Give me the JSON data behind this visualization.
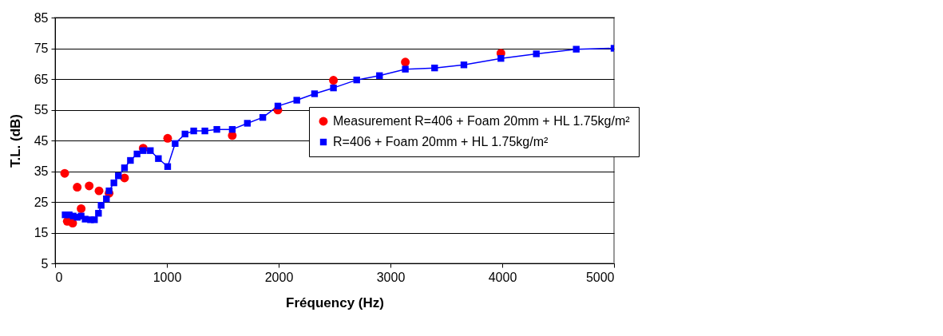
{
  "chart_data": {
    "type": "line",
    "xlabel": "Fréquency (Hz)",
    "ylabel": "T.L. (dB)",
    "xlim": [
      0,
      5000
    ],
    "xticks": [
      0,
      1000,
      2000,
      3000,
      4000,
      5000
    ],
    "ylim": [
      5,
      85
    ],
    "yticks": [
      5,
      15,
      25,
      35,
      45,
      55,
      65,
      75,
      85
    ],
    "grid": "y",
    "legend": "right",
    "series": [
      {
        "name": "Measurement R=406 + Foam 20mm + HL 1.75kg/m²",
        "type": "scatter",
        "marker": "circle",
        "color": "#ff0000",
        "x": [
          86,
          109,
          157,
          198,
          233,
          305,
          393,
          483,
          621,
          788,
          1007,
          1585,
          1993,
          2490,
          3133,
          3988
        ],
        "values": [
          34.3,
          18.7,
          18.1,
          29.8,
          22.8,
          30.2,
          28.6,
          27.8,
          32.8,
          42.5,
          45.7,
          46.6,
          54.9,
          64.6,
          70.5,
          73.4
        ]
      },
      {
        "name": "R=406 + Foam 20mm + HL 1.75kg/m²",
        "type": "line",
        "marker": "square",
        "color": "#0000ff",
        "x": [
          90,
          126,
          162,
          198,
          233,
          269,
          317,
          352,
          388,
          412,
          459,
          483,
          526,
          566,
          621,
          674,
          733,
          788,
          852,
          924,
          1007,
          1074,
          1162,
          1240,
          1340,
          1447,
          1585,
          1720,
          1858,
          1993,
          2162,
          2321,
          2490,
          2698,
          2902,
          3133,
          3395,
          3657,
          3988,
          4305,
          4662,
          5000
        ],
        "values": [
          20.8,
          20.8,
          20.4,
          20.0,
          20.4,
          19.4,
          19.2,
          19.2,
          21.3,
          23.9,
          26.0,
          28.6,
          31.2,
          33.5,
          36.1,
          38.5,
          40.6,
          41.7,
          41.7,
          39.1,
          36.5,
          44.0,
          47.1,
          48.1,
          48.1,
          48.6,
          48.6,
          50.6,
          52.5,
          56.2,
          58.1,
          60.2,
          62.1,
          64.7,
          66.1,
          68.2,
          68.6,
          69.6,
          71.7,
          73.2,
          74.7,
          75.0
        ]
      }
    ]
  }
}
